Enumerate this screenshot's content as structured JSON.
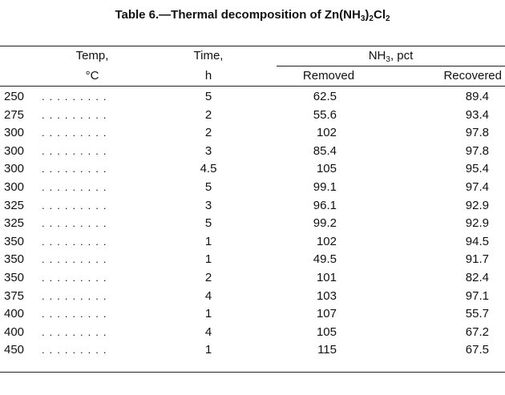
{
  "title": {
    "parts": [
      "Table 6.—Thermal decomposition of Zn(NH",
      "3",
      ")",
      "2",
      "Cl",
      "2"
    ]
  },
  "header": {
    "temp": [
      "Temp,",
      "°C"
    ],
    "time": [
      "Time,",
      "h"
    ],
    "nh3": [
      "NH",
      "3",
      ", pct"
    ],
    "removed": "Removed",
    "recovered": "Recovered"
  },
  "table": {
    "rows": [
      [
        250,
        5,
        62.5,
        89.4
      ],
      [
        275,
        2,
        55.6,
        93.4
      ],
      [
        300,
        2,
        102,
        97.8
      ],
      [
        300,
        3,
        85.4,
        97.8
      ],
      [
        300,
        4.5,
        105,
        95.4
      ],
      [
        300,
        5,
        99.1,
        97.4
      ],
      [
        325,
        3,
        96.1,
        92.9
      ],
      [
        325,
        5,
        99.2,
        92.9
      ],
      [
        350,
        1,
        102,
        94.5
      ],
      [
        350,
        1,
        49.5,
        91.7
      ],
      [
        350,
        2,
        101,
        82.4
      ],
      [
        375,
        4,
        103,
        97.1
      ],
      [
        400,
        1,
        107,
        55.7
      ],
      [
        400,
        4,
        105,
        67.2
      ],
      [
        450,
        1,
        115,
        67.5
      ]
    ]
  }
}
